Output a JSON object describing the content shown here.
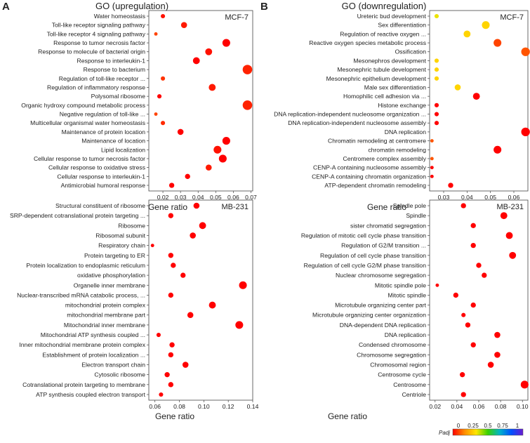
{
  "figure": {
    "panels": [
      {
        "letter": "A",
        "title": "GO (upregulation)"
      },
      {
        "letter": "B",
        "title": "GO (downregulation)"
      }
    ],
    "legend": {
      "label": "Padj",
      "ticks": [
        "0",
        "0.25",
        "0.5",
        "0.75",
        "1"
      ],
      "colors": [
        "#ff0000",
        "#ff8c00",
        "#ffe600",
        "#38d100",
        "#00b4c8",
        "#0050ff",
        "#6a1bd0"
      ]
    }
  },
  "chart_data": [
    {
      "type": "scatter",
      "panel": "A",
      "cell_line": "MCF-7",
      "title": "GO (upregulation)",
      "xlabel": "Gene ratio",
      "xlim": [
        0.012,
        0.071
      ],
      "xticks": [
        0.02,
        0.03,
        0.04,
        0.05,
        0.06,
        0.07
      ],
      "tick_labels": [
        "0.02",
        "0.03",
        "0.04",
        "0.05",
        "0.06",
        "0.07"
      ],
      "categories": [
        "Water homeostasis",
        "Toll-like receptor signaling pathway",
        "Toll-like receptor 4 signaling pathway",
        "Response to tumor necrosis factor",
        "Response to molecule of bacterial origin",
        "Response to interleukin-1",
        "Response to bacterium",
        "Regulation of toll-like receptor ...",
        "Regulation of inflammatory response",
        "Polysomal ribosome",
        "Organic hydroxy compound metabolic process",
        "Negative regulation of toll-like ...",
        "Multicellular organismal water homeostasis",
        "Maintenance of protein location",
        "Maintenance of location",
        "Lipid localization",
        "Cellular response to tumor necrosis factor",
        "Cellular response to oxidative stress",
        "Cellular response to interleukin-1",
        "Antimicrobial humoral response"
      ],
      "x": [
        0.02,
        0.032,
        0.016,
        0.056,
        0.046,
        0.039,
        0.068,
        0.02,
        0.048,
        0.018,
        0.068,
        0.016,
        0.02,
        0.03,
        0.056,
        0.051,
        0.054,
        0.046,
        0.034,
        0.025
      ],
      "size": [
        3,
        5,
        2,
        7,
        6,
        6,
        9,
        3,
        6,
        3,
        9,
        2,
        3,
        5,
        7,
        7,
        7,
        5,
        4,
        4
      ],
      "padj": [
        0.02,
        0.03,
        0.08,
        0.0,
        0.02,
        0.0,
        0.04,
        0.06,
        0.03,
        0.0,
        0.04,
        0.08,
        0.05,
        0.0,
        0.0,
        0.02,
        0.0,
        0.03,
        0.0,
        0.0
      ]
    },
    {
      "type": "scatter",
      "panel": "B",
      "cell_line": "MCF-7",
      "title": "GO (downregulation)",
      "xlabel": "Gene ratio",
      "xlim": [
        0.024,
        0.066
      ],
      "xticks": [
        0.03,
        0.04,
        0.05,
        0.06
      ],
      "tick_labels": [
        "0.03",
        "0.04",
        "0.05",
        "0.06"
      ],
      "categories": [
        "Ureteric bud development",
        "Sex differentiation",
        "Regulation of reactive oxygen ...",
        "Reactive oxygen species metabolic process",
        "Ossification",
        "Mesonephros development",
        "Mesonephric tubule development",
        "Mesonephric epithelium development",
        "Male sex differentiation",
        "Homophilic cell adhesion via ...",
        "Histone exchange",
        "DNA replication-independent nucleosome organization ...",
        "DNA replication-independent nucleosome assembly",
        "DNA replication",
        "Chromatin remodeling at centromere",
        "chromatin remodeling",
        "Centromere complex assembly",
        "CENP-A containing nucleosome assembly",
        "CENP-A containing chromatin organization",
        "ATP-dependent chromatin remodeling"
      ],
      "x": [
        0.027,
        0.048,
        0.04,
        0.053,
        0.065,
        0.027,
        0.027,
        0.027,
        0.036,
        0.044,
        0.027,
        0.027,
        0.027,
        0.065,
        0.025,
        0.053,
        0.025,
        0.025,
        0.025,
        0.033
      ],
      "size": [
        3,
        7,
        6,
        7,
        8,
        3,
        3,
        3,
        5,
        6,
        3,
        3,
        3,
        8,
        2,
        7,
        2,
        2,
        2,
        4
      ],
      "padj": [
        0.35,
        0.3,
        0.3,
        0.08,
        0.1,
        0.3,
        0.3,
        0.3,
        0.3,
        0.0,
        0.0,
        0.0,
        0.0,
        0.0,
        0.1,
        0.0,
        0.1,
        0.0,
        0.0,
        0.0
      ]
    },
    {
      "type": "scatter",
      "panel": "A",
      "cell_line": "MB-231",
      "xlabel": "Gene ratio",
      "xlim": [
        0.055,
        0.14
      ],
      "xticks": [
        0.06,
        0.08,
        0.1,
        0.12,
        0.14
      ],
      "tick_labels": [
        "0.06",
        "0.08",
        "0.10",
        "0.12",
        "0.14"
      ],
      "categories": [
        "Structural constituent of ribosome",
        "SRP-dependent cotranslational protein targeting ...",
        "Ribosome",
        "Ribosomal subunit",
        "Respiratory chain",
        "Protein targeting to ER",
        "Protein localization to endoplasmic reticulum",
        "oxidative phosphorylation",
        "Organelle inner membrane",
        "Nuclear-transcribed mRNA catabolic process, ...",
        "mitochondrial protein complex",
        "mitochondrial membrane part",
        "Mitochondrial inner membrane",
        "Mitochondrial ATP synthesis coupled ...",
        "Inner mitochondrial membrane protein complex",
        "Establishment of protein localization ...",
        "Electron transport chain",
        "Cytosolic ribosome",
        "Cotranslational protein targeting to membrane",
        "ATP synthesis coupled electron transport"
      ],
      "x": [
        0.094,
        0.073,
        0.099,
        0.091,
        0.058,
        0.073,
        0.075,
        0.083,
        0.132,
        0.073,
        0.107,
        0.089,
        0.129,
        0.063,
        0.074,
        0.073,
        0.085,
        0.07,
        0.073,
        0.065
      ],
      "size": [
        5,
        4,
        6,
        5,
        2,
        4,
        4,
        4,
        7,
        4,
        6,
        5,
        7,
        3,
        4,
        4,
        5,
        4,
        4,
        3
      ],
      "padj": [
        0,
        0,
        0,
        0,
        0,
        0,
        0,
        0,
        0,
        0,
        0,
        0,
        0,
        0,
        0,
        0,
        0,
        0,
        0,
        0
      ]
    },
    {
      "type": "scatter",
      "panel": "B",
      "cell_line": "MB-231",
      "xlabel": "Gene ratio",
      "xlim": [
        0.015,
        0.105
      ],
      "xticks": [
        0.02,
        0.04,
        0.06,
        0.08,
        0.1
      ],
      "tick_labels": [
        "0.02",
        "0.04",
        "0.06",
        "0.08",
        "0.10"
      ],
      "categories": [
        "Spindle pole",
        "Spindle",
        "sister chromatid segregation",
        "Regulation of mitotic cell cycle phase transition",
        "Regulation of G2/M transition ...",
        "Regulation of cell cycle phase transition",
        "Regulation of cell cycle G2/M phase transition",
        "Nuclear chromosome segregation",
        "Mitotic spindle pole",
        "Mitotic spindle",
        "Microtubule organizing center part",
        "Microtubule organizing center organization",
        "DNA-dependent DNA replication",
        "DNA replication",
        "Condensed chromosome",
        "Chromosome segregation",
        "Chromosomal region",
        "Centrosome cycle",
        "Centrosome",
        "Centriole"
      ],
      "x": [
        0.046,
        0.083,
        0.055,
        0.088,
        0.055,
        0.091,
        0.06,
        0.065,
        0.022,
        0.039,
        0.055,
        0.046,
        0.05,
        0.077,
        0.055,
        0.077,
        0.071,
        0.045,
        0.102,
        0.046
      ],
      "size": [
        4,
        6,
        4,
        6,
        4,
        6,
        4,
        4,
        2,
        4,
        4,
        3,
        4,
        5,
        4,
        5,
        5,
        4,
        7,
        4
      ],
      "padj": [
        0,
        0,
        0,
        0,
        0,
        0,
        0,
        0,
        0,
        0,
        0,
        0,
        0,
        0,
        0,
        0,
        0,
        0,
        0,
        0
      ]
    }
  ]
}
